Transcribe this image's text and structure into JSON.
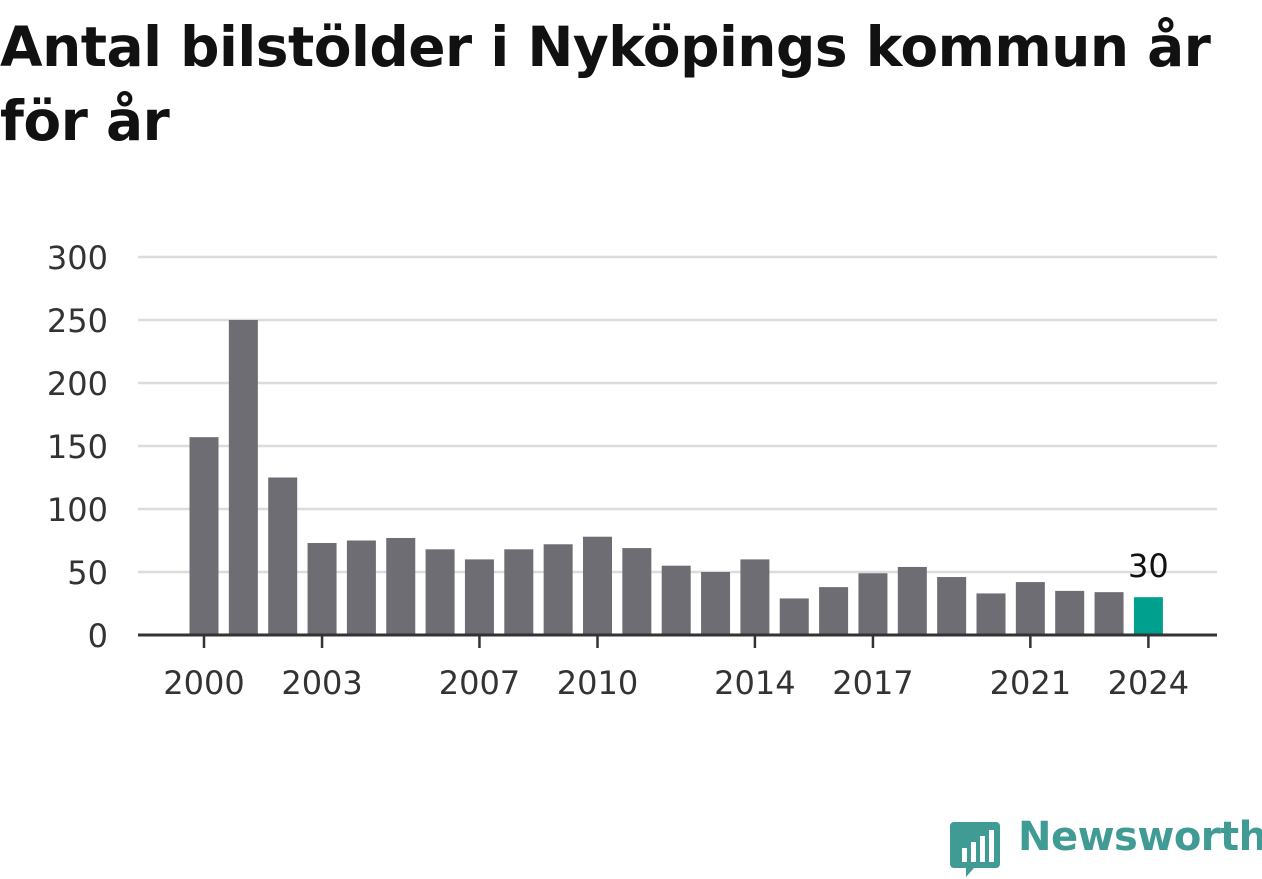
{
  "chart_data": {
    "type": "bar",
    "title": "Antal bilstölder i Nyköpings kommun år för år",
    "xlabel": "",
    "ylabel": "",
    "categories": [
      "2000",
      "2001",
      "2002",
      "2003",
      "2004",
      "2005",
      "2006",
      "2007",
      "2008",
      "2009",
      "2010",
      "2011",
      "2012",
      "2013",
      "2014",
      "2015",
      "2016",
      "2017",
      "2018",
      "2019",
      "2020",
      "2021",
      "2022",
      "2023",
      "2024"
    ],
    "values": [
      157,
      250,
      125,
      73,
      75,
      77,
      68,
      60,
      68,
      72,
      78,
      69,
      55,
      50,
      60,
      29,
      38,
      49,
      54,
      46,
      33,
      42,
      35,
      34,
      30
    ],
    "x_tick_labels": [
      "2000",
      "2003",
      "2007",
      "2010",
      "2014",
      "2017",
      "2021",
      "2024"
    ],
    "y_ticks": [
      0,
      50,
      100,
      150,
      200,
      250,
      300
    ],
    "ylim": [
      0,
      300
    ],
    "grid": true,
    "highlight": {
      "category": "2024",
      "label": "30"
    },
    "colors": {
      "bar": "#6e6d73",
      "highlight": "#00a08e",
      "grid": "#dcdcdc",
      "axis": "#333333"
    }
  },
  "brand": {
    "name": "Newsworthy",
    "color": "#3f9b94",
    "icon": "newsworthy-logo-icon"
  }
}
